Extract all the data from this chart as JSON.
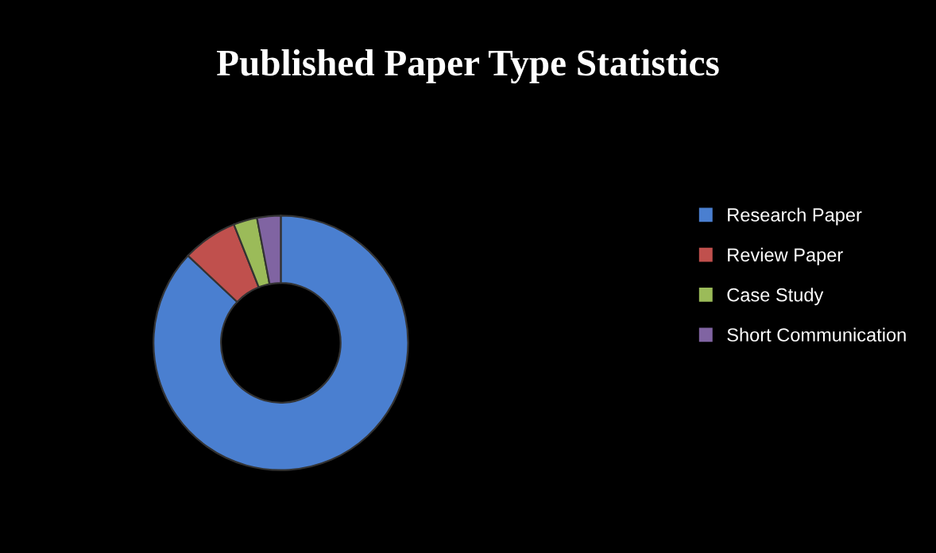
{
  "chart_data": {
    "type": "donut",
    "title": "Published Paper Type Statistics",
    "categories": [
      "Research Paper",
      "Review Paper",
      "Case Study",
      "Short Communication"
    ],
    "values": [
      87,
      7,
      3,
      3
    ],
    "colors": [
      "#4a7fd0",
      "#c0504d",
      "#9bbb59",
      "#8064a2"
    ],
    "legend": "right"
  }
}
